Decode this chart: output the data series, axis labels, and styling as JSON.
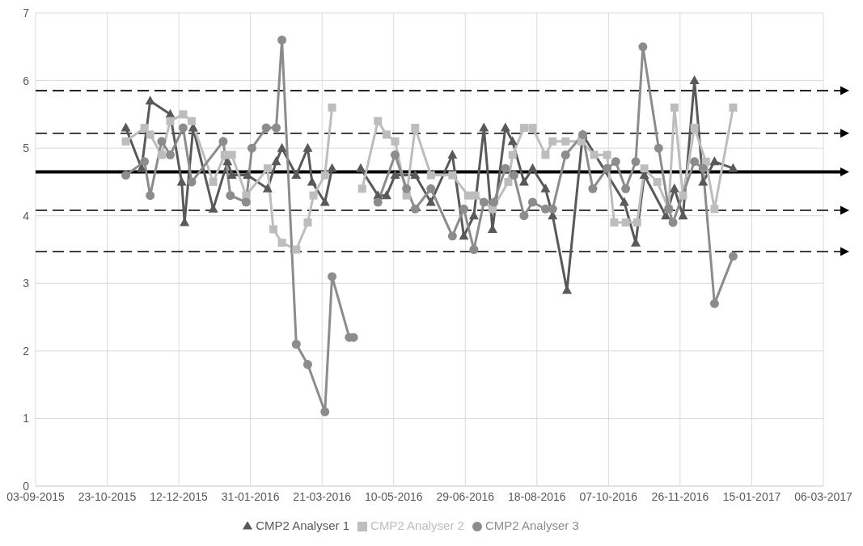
{
  "chart_data": {
    "type": "line",
    "legend": "bottom",
    "grid": true,
    "xlim": [
      "2015-09-03",
      "2017-03-06"
    ],
    "xticks": [
      {
        "value": "2015-09-03",
        "label": "03-09-2015"
      },
      {
        "value": "2015-10-23",
        "label": "23-10-2015"
      },
      {
        "value": "2015-12-12",
        "label": "12-12-2015"
      },
      {
        "value": "2016-01-31",
        "label": "31-01-2016"
      },
      {
        "value": "2016-03-21",
        "label": "21-03-2016"
      },
      {
        "value": "2016-05-10",
        "label": "10-05-2016"
      },
      {
        "value": "2016-06-29",
        "label": "29-06-2016"
      },
      {
        "value": "2016-08-18",
        "label": "18-08-2016"
      },
      {
        "value": "2016-10-07",
        "label": "07-10-2016"
      },
      {
        "value": "2016-11-26",
        "label": "26-11-2016"
      },
      {
        "value": "2017-01-15",
        "label": "15-01-2017"
      },
      {
        "value": "2017-03-06",
        "label": "06-03-2017"
      }
    ],
    "ylim": [
      0,
      7
    ],
    "yticks": [
      0,
      1,
      2,
      3,
      4,
      5,
      6,
      7
    ],
    "series": [
      {
        "name": "CMP2 Analyser 1",
        "color": "#595959",
        "marker": "triangle",
        "x": [
          "2015-11-05",
          "2015-11-16",
          "2015-11-22",
          "2015-12-06",
          "2015-12-14",
          "2015-12-16",
          "2015-12-22",
          "2016-01-05",
          "2016-01-15",
          "2016-01-18",
          "2016-01-29",
          "2016-02-12",
          "2016-02-18",
          "2016-02-22",
          "2016-03-03",
          "2016-03-11",
          "2016-03-14",
          "2016-03-23",
          "2016-03-28",
          "2016-04-05",
          "2016-04-17",
          "2016-04-29",
          "2016-05-05",
          "2016-05-11",
          "2016-05-25",
          "2016-06-05",
          "2016-06-20",
          "2016-06-28",
          "2016-07-05",
          "2016-07-12",
          "2016-07-18",
          "2016-07-27",
          "2016-08-01",
          "2016-08-09",
          "2016-08-15",
          "2016-08-24",
          "2016-08-29",
          "2016-09-08",
          "2016-09-19",
          "2016-10-18",
          "2016-10-26",
          "2016-11-01",
          "2016-11-16",
          "2016-11-22",
          "2016-11-28",
          "2016-12-06",
          "2016-12-12",
          "2016-12-20",
          "2017-01-02"
        ],
        "values": [
          5.3,
          4.7,
          5.7,
          5.5,
          4.5,
          3.9,
          5.3,
          4.1,
          4.8,
          4.6,
          4.6,
          4.4,
          4.8,
          5.0,
          4.6,
          5.0,
          4.5,
          4.2,
          4.7,
          null,
          4.7,
          4.3,
          4.3,
          4.6,
          4.6,
          4.2,
          4.9,
          3.7,
          4.0,
          5.3,
          3.8,
          5.3,
          5.1,
          4.5,
          4.7,
          4.4,
          4.0,
          2.9,
          5.2,
          4.2,
          3.6,
          4.6,
          4.0,
          4.4,
          4.0,
          6.0,
          4.5,
          4.8,
          4.7
        ]
      },
      {
        "name": "CMP2 Analyser 2",
        "color": "#bdbdbd",
        "marker": "square",
        "x": [
          "2015-11-05",
          "2015-11-18",
          "2015-11-22",
          "2015-11-30",
          "2015-12-06",
          "2015-12-15",
          "2015-12-21",
          "2016-01-05",
          "2016-01-13",
          "2016-01-18",
          "2016-01-28",
          "2016-02-12",
          "2016-02-16",
          "2016-02-22",
          "2016-03-03",
          "2016-03-11",
          "2016-03-15",
          "2016-03-23",
          "2016-03-28",
          "2016-04-05",
          "2016-04-18",
          "2016-04-29",
          "2016-05-05",
          "2016-05-11",
          "2016-05-19",
          "2016-05-25",
          "2016-06-05",
          "2016-06-20",
          "2016-07-01",
          "2016-07-06",
          "2016-07-18",
          "2016-07-29",
          "2016-08-01",
          "2016-08-09",
          "2016-08-15",
          "2016-08-24",
          "2016-08-29",
          "2016-09-07",
          "2016-09-18",
          "2016-09-27",
          "2016-10-06",
          "2016-10-11",
          "2016-10-19",
          "2016-10-27",
          "2016-11-01",
          "2016-11-10",
          "2016-11-18",
          "2016-11-22",
          "2016-11-28",
          "2016-12-06",
          "2016-12-14",
          "2016-12-20",
          "2017-01-02"
        ],
        "values": [
          5.1,
          5.3,
          5.2,
          4.9,
          5.4,
          5.5,
          5.4,
          4.5,
          4.9,
          4.9,
          4.3,
          4.7,
          3.8,
          3.6,
          3.5,
          3.9,
          4.3,
          4.6,
          5.6,
          null,
          4.4,
          5.4,
          5.2,
          5.1,
          4.3,
          5.3,
          4.6,
          4.6,
          4.3,
          4.3,
          4.1,
          4.5,
          4.9,
          5.3,
          5.3,
          4.9,
          5.1,
          5.1,
          5.1,
          4.9,
          4.9,
          3.9,
          3.9,
          3.9,
          4.7,
          4.5,
          4.1,
          5.6,
          4.3,
          5.3,
          4.8,
          4.1,
          5.6
        ]
      },
      {
        "name": "CMP2 Analyser 3",
        "color": "#8c8c8c",
        "marker": "circle",
        "x": [
          "2015-11-05",
          "2015-11-18",
          "2015-11-22",
          "2015-11-30",
          "2015-12-06",
          "2015-12-15",
          "2015-12-21",
          "2016-01-12",
          "2016-01-17",
          "2016-01-28",
          "2016-02-01",
          "2016-02-11",
          "2016-02-18",
          "2016-02-22",
          "2016-03-03",
          "2016-03-11",
          "2016-03-23",
          "2016-03-28",
          "2016-04-09",
          "2016-04-12",
          "2016-04-20",
          "2016-04-29",
          "2016-05-11",
          "2016-05-19",
          "2016-05-25",
          "2016-06-05",
          "2016-06-20",
          "2016-06-28",
          "2016-07-05",
          "2016-07-12",
          "2016-07-19",
          "2016-07-27",
          "2016-08-02",
          "2016-08-09",
          "2016-08-15",
          "2016-08-24",
          "2016-08-29",
          "2016-09-07",
          "2016-09-19",
          "2016-09-26",
          "2016-10-06",
          "2016-10-12",
          "2016-10-19",
          "2016-10-26",
          "2016-10-31",
          "2016-11-11",
          "2016-11-18",
          "2016-11-21",
          "2016-12-06",
          "2016-12-12",
          "2016-12-20",
          "2017-01-02"
        ],
        "values": [
          4.6,
          4.8,
          4.3,
          5.1,
          4.9,
          5.3,
          4.5,
          5.1,
          4.3,
          4.2,
          5.0,
          5.3,
          5.3,
          6.6,
          2.1,
          1.8,
          1.1,
          3.1,
          2.2,
          2.2,
          null,
          4.2,
          4.9,
          4.4,
          4.1,
          4.4,
          3.7,
          4.1,
          3.5,
          4.2,
          4.2,
          4.7,
          4.6,
          4.0,
          4.2,
          4.1,
          4.1,
          4.9,
          5.2,
          4.4,
          4.7,
          4.8,
          4.4,
          4.8,
          6.5,
          5.0,
          4.1,
          3.9,
          4.8,
          4.7,
          2.7,
          3.4
        ]
      }
    ],
    "ref_lines": [
      {
        "axis": "y",
        "value": 5.85,
        "color": "#000000",
        "line_style": "dashed"
      },
      {
        "axis": "y",
        "value": 5.22,
        "color": "#000000",
        "line_style": "dashed"
      },
      {
        "axis": "y",
        "value": 4.65,
        "color": "#000000",
        "line_style": "solid"
      },
      {
        "axis": "y",
        "value": 4.08,
        "color": "#000000",
        "line_style": "dashed"
      },
      {
        "axis": "y",
        "value": 3.47,
        "color": "#000000",
        "line_style": "dashed"
      }
    ]
  }
}
